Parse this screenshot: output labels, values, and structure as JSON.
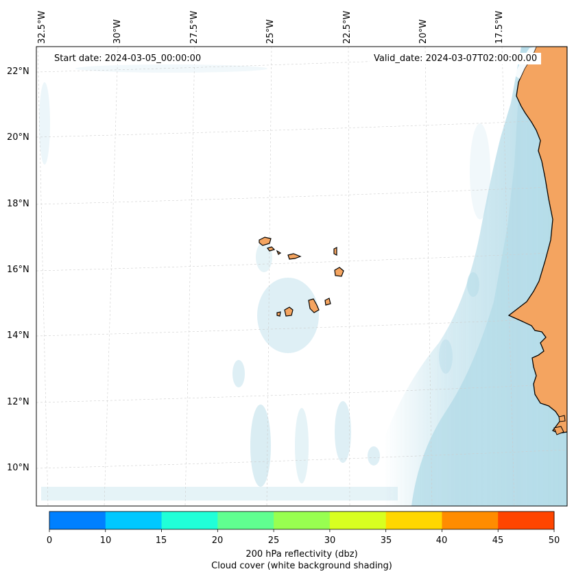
{
  "map": {
    "lon_ticks": [
      "32.5°W",
      "30°W",
      "27.5°W",
      "25°W",
      "22.5°W",
      "20°W",
      "17.5°W"
    ],
    "lat_ticks": [
      "22°N",
      "20°N",
      "18°N",
      "16°N",
      "14°N",
      "12°N",
      "10°N"
    ],
    "start_date": "Start date: 2024-03-05_00:00:00",
    "valid_date": "Valid_date: 2024-03-07T02:00:00.00",
    "colors": {
      "land": "#f4a460",
      "cloud": "#add8e6",
      "coast": "#000000",
      "grid": "#cccccc"
    }
  },
  "colorbar": {
    "ticks": [
      "0",
      "10",
      "15",
      "20",
      "25",
      "30",
      "35",
      "40",
      "45",
      "50"
    ],
    "colors": [
      "#0080ff",
      "#00c8ff",
      "#20ffd8",
      "#60ff90",
      "#98ff50",
      "#d8ff20",
      "#ffd700",
      "#ff8c00",
      "#ff4500"
    ],
    "label": "200 hPa reflectivity (dbz)",
    "sublabel": "Cloud cover (white background shading)"
  }
}
